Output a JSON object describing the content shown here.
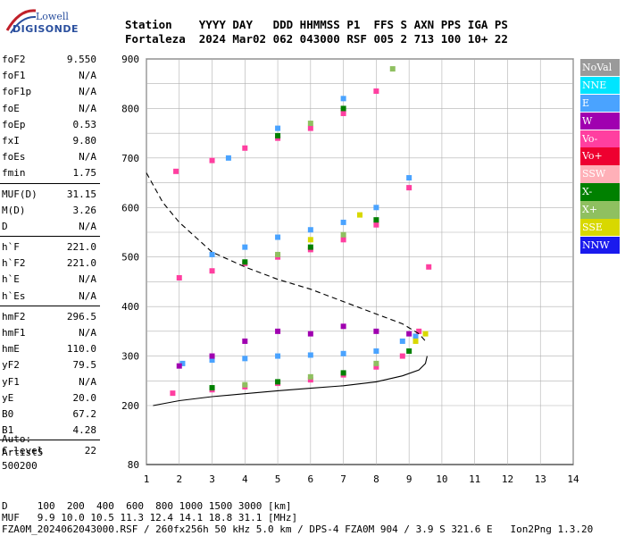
{
  "logo": {
    "line1": "Lowell",
    "line2": "DIGISONDE"
  },
  "header": {
    "row1": "Station    YYYY DAY   DDD HHMMSS P1  FFS S AXN PPS IGA PS",
    "row2": "Fortaleza  2024 Mar02 062 043000 RSF 005 2 713 100 10+ 22"
  },
  "params": [
    {
      "k": "foF2",
      "v": "9.550"
    },
    {
      "k": "foF1",
      "v": "N/A"
    },
    {
      "k": "foF1p",
      "v": "N/A"
    },
    {
      "k": "foE",
      "v": "N/A"
    },
    {
      "k": "foEp",
      "v": "0.53"
    },
    {
      "k": "fxI",
      "v": "9.80"
    },
    {
      "k": "foEs",
      "v": "N/A"
    },
    {
      "k": "fmin",
      "v": "1.75"
    },
    {
      "k": "MUF(D)",
      "v": "31.15"
    },
    {
      "k": "M(D)",
      "v": "3.26"
    },
    {
      "k": "D",
      "v": "N/A"
    },
    {
      "k": "h`F",
      "v": "221.0"
    },
    {
      "k": "h`F2",
      "v": "221.0"
    },
    {
      "k": "h`E",
      "v": "N/A"
    },
    {
      "k": "h`Es",
      "v": "N/A"
    },
    {
      "k": "hmF2",
      "v": "296.5"
    },
    {
      "k": "hmF1",
      "v": "N/A"
    },
    {
      "k": "hmE",
      "v": "110.0"
    },
    {
      "k": "yF2",
      "v": "79.5"
    },
    {
      "k": "yF1",
      "v": "N/A"
    },
    {
      "k": "yE",
      "v": "20.0"
    },
    {
      "k": "B0",
      "v": "67.2"
    },
    {
      "k": "B1",
      "v": "4.28"
    },
    {
      "k": "C-level",
      "v": "22"
    }
  ],
  "auto": {
    "line1": "Auto:",
    "line2": "Artist5",
    "line3": "500200"
  },
  "footer": {
    "line1": "D     100  200  400  600  800 1000 1500 3000 [km]",
    "line2": "MUF   9.9 10.0 10.5 11.3 12.4 14.1 18.8 31.1 [MHz]",
    "line3": "FZA0M_2024062043000.RSF / 260fx256h 50 kHz 5.0 km / DPS-4 FZA0M 904 / 3.9 S 321.6 E   Ion2Png 1.3.20"
  },
  "legend": [
    {
      "label": "NoVal",
      "color": "#9a9a9a"
    },
    {
      "label": "NNE",
      "color": "#00e5ff"
    },
    {
      "label": "E",
      "color": "#4aa3ff"
    },
    {
      "label": "W",
      "color": "#a000b0"
    },
    {
      "label": "Vo-",
      "color": "#ff3fa0"
    },
    {
      "label": "Vo+",
      "color": "#ee0030"
    },
    {
      "label": "SSW",
      "color": "#ffb0b8"
    },
    {
      "label": "X-",
      "color": "#008000"
    },
    {
      "label": "X+",
      "color": "#8fc060"
    },
    {
      "label": "SSE",
      "color": "#d8d800"
    },
    {
      "label": "NNW",
      "color": "#1a1aee"
    }
  ],
  "chart_data": {
    "type": "scatter",
    "xlim": [
      1,
      14
    ],
    "ylim": [
      80,
      900
    ],
    "x_ticks": [
      "1",
      "2",
      "3",
      "4",
      "5",
      "6",
      "7",
      "8",
      "9",
      "10",
      "11",
      "12",
      "13",
      "14"
    ],
    "y_ticks": [
      "80",
      "200",
      "300",
      "400",
      "500",
      "600",
      "700",
      "800",
      "900"
    ],
    "grid": true,
    "series": [
      {
        "name": "E",
        "color": "#4aa3ff",
        "points": [
          [
            2.1,
            285
          ],
          [
            3,
            292
          ],
          [
            4,
            295
          ],
          [
            5,
            300
          ],
          [
            6,
            302
          ],
          [
            7,
            305
          ],
          [
            8,
            310
          ],
          [
            8.8,
            330
          ],
          [
            9.2,
            340
          ],
          [
            3,
            505
          ],
          [
            4,
            520
          ],
          [
            5,
            540
          ],
          [
            6,
            555
          ],
          [
            7,
            570
          ],
          [
            8,
            600
          ],
          [
            9,
            660
          ],
          [
            3.5,
            700
          ],
          [
            5,
            760
          ],
          [
            7,
            820
          ]
        ]
      },
      {
        "name": "Vo-",
        "color": "#ff3fa0",
        "points": [
          [
            1.8,
            225
          ],
          [
            3,
            232
          ],
          [
            4,
            238
          ],
          [
            5,
            245
          ],
          [
            6,
            252
          ],
          [
            7,
            262
          ],
          [
            8,
            278
          ],
          [
            8.8,
            300
          ],
          [
            9.3,
            350
          ],
          [
            9.6,
            480
          ],
          [
            2,
            458
          ],
          [
            3,
            472
          ],
          [
            4,
            487
          ],
          [
            5,
            500
          ],
          [
            6,
            515
          ],
          [
            7,
            535
          ],
          [
            8,
            565
          ],
          [
            9,
            640
          ],
          [
            1.9,
            673
          ],
          [
            3,
            695
          ],
          [
            4,
            720
          ],
          [
            5,
            740
          ],
          [
            6,
            760
          ],
          [
            7,
            790
          ],
          [
            8,
            835
          ]
        ]
      },
      {
        "name": "W",
        "color": "#a000b0",
        "points": [
          [
            2,
            280
          ],
          [
            3,
            300
          ],
          [
            4,
            330
          ],
          [
            5,
            350
          ],
          [
            6,
            345
          ],
          [
            7,
            360
          ],
          [
            8,
            350
          ],
          [
            9,
            345
          ]
        ]
      },
      {
        "name": "X-",
        "color": "#008000",
        "points": [
          [
            3,
            236
          ],
          [
            5,
            248
          ],
          [
            7,
            266
          ],
          [
            9,
            310
          ],
          [
            4,
            490
          ],
          [
            6,
            520
          ],
          [
            8,
            575
          ],
          [
            5,
            745
          ],
          [
            7,
            800
          ]
        ]
      },
      {
        "name": "X+",
        "color": "#8fc060",
        "points": [
          [
            4,
            242
          ],
          [
            6,
            258
          ],
          [
            8,
            285
          ],
          [
            5,
            505
          ],
          [
            7,
            545
          ],
          [
            6,
            770
          ],
          [
            8.5,
            880
          ]
        ]
      },
      {
        "name": "SSE",
        "color": "#d8d800",
        "points": [
          [
            9.2,
            330
          ],
          [
            9.5,
            345
          ],
          [
            6,
            535
          ],
          [
            7.5,
            585
          ]
        ]
      }
    ],
    "curves": [
      {
        "name": "solid",
        "x": [
          1.2,
          2,
          3,
          4,
          5,
          6,
          7,
          8,
          8.8,
          9.3,
          9.5,
          9.55
        ],
        "y": [
          200,
          210,
          218,
          224,
          230,
          235,
          240,
          248,
          260,
          272,
          285,
          300
        ]
      },
      {
        "name": "dashed",
        "x": [
          1,
          1.5,
          2,
          3,
          4,
          5,
          6,
          7,
          8,
          8.8,
          9.3,
          9.5
        ],
        "y": [
          670,
          610,
          570,
          510,
          480,
          455,
          435,
          410,
          385,
          365,
          345,
          330
        ]
      }
    ]
  }
}
